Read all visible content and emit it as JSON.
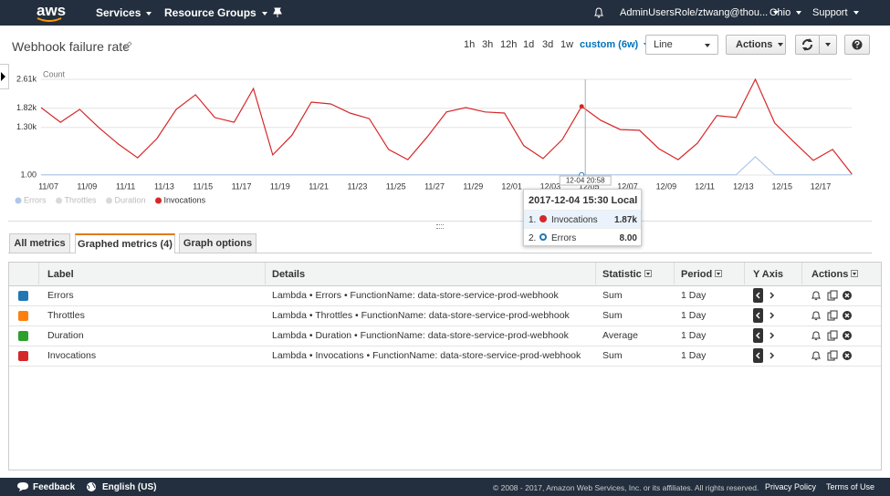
{
  "nav": {
    "logo": "aws",
    "services": "Services",
    "resource_groups": "Resource Groups",
    "account": "AdminUsersRole/ztwang@thou...",
    "region": "Ohio",
    "support": "Support"
  },
  "header": {
    "title": "Webhook failure rate",
    "ranges": [
      "1h",
      "3h",
      "12h",
      "1d",
      "3d",
      "1w"
    ],
    "custom": "custom (6w)",
    "view": "Line",
    "actions": "Actions"
  },
  "chart_data": {
    "type": "line",
    "y_label": "Count",
    "categories": [
      null,
      "11/07",
      null,
      "11/09",
      null,
      "11/11",
      null,
      "11/13",
      null,
      "11/15",
      null,
      "11/17",
      null,
      "11/19",
      null,
      "11/21",
      null,
      "11/23",
      null,
      "11/25",
      null,
      "11/27",
      null,
      "11/29",
      null,
      "12/01",
      null,
      "12/03",
      null,
      "12/05",
      null,
      "12/07",
      null,
      "12/09",
      null,
      "12/11",
      null,
      "12/13",
      null,
      "12/15",
      null,
      "12/17",
      null
    ],
    "series": [
      {
        "name": "Errors",
        "color": "#aec7e8",
        "values": [
          8,
          8,
          8,
          8,
          8,
          8,
          8,
          8,
          8,
          8,
          8,
          8,
          8,
          8,
          8,
          8,
          8,
          8,
          8,
          8,
          8,
          8,
          8,
          8,
          8,
          8,
          8,
          8,
          8,
          8,
          8,
          8,
          8,
          8,
          8,
          8,
          8,
          500,
          8,
          8,
          8,
          8,
          8
        ]
      },
      {
        "name": "Throttles",
        "color": "#d9d9d9",
        "values": [
          null,
          null,
          null,
          null,
          null,
          null,
          null,
          null,
          null,
          null,
          null,
          null,
          null,
          null,
          null,
          null,
          null,
          null,
          null,
          null,
          null,
          null,
          null,
          null,
          null,
          null,
          null,
          null,
          null,
          null,
          null,
          null,
          null,
          null,
          null,
          null,
          null,
          null,
          null,
          null,
          null,
          null,
          null
        ]
      },
      {
        "name": "Duration",
        "color": "#d9d9d9",
        "values": [
          null,
          null,
          null,
          null,
          null,
          null,
          null,
          null,
          null,
          null,
          null,
          null,
          null,
          null,
          null,
          null,
          null,
          null,
          null,
          null,
          null,
          null,
          null,
          null,
          null,
          null,
          null,
          null,
          null,
          null,
          null,
          null,
          null,
          null,
          null,
          null,
          null,
          null,
          null,
          null,
          null,
          null,
          null
        ]
      },
      {
        "name": "Invocations",
        "color": "#d62728",
        "values": [
          1840,
          1440,
          1790,
          1290,
          845,
          470,
          995,
          1790,
          2190,
          1570,
          1440,
          2360,
          550,
          1090,
          1990,
          1940,
          1690,
          1540,
          700,
          420,
          1040,
          1720,
          1840,
          1720,
          1690,
          800,
          450,
          970,
          1870,
          1490,
          1240,
          1220,
          720,
          420,
          870,
          1620,
          1570,
          2610,
          1420,
          900,
          400,
          700,
          25
        ]
      }
    ],
    "ylim": [
      1,
      2610
    ],
    "yticks": [
      {
        "value": 1,
        "label": "1.00"
      },
      {
        "value": 1300,
        "label": "1.30k"
      },
      {
        "value": 1820,
        "label": "1.82k"
      },
      {
        "value": 2610,
        "label": "2.61k"
      }
    ],
    "grid": true,
    "legend": "bottom-left",
    "crosshair": "12-04 20:58",
    "tooltip": {
      "title": "2017-12-04 15:30 Local",
      "rows": [
        {
          "index": "1.",
          "name": "Invocations",
          "value": "1.87k"
        },
        {
          "index": "2.",
          "name": "Errors",
          "value": "8.00"
        }
      ]
    }
  },
  "tabs": [
    "All metrics",
    "Graphed metrics (4)",
    "Graph options"
  ],
  "table": {
    "columns": [
      "Label",
      "Details",
      "Statistic",
      "Period",
      "Y Axis",
      "Actions"
    ],
    "rows": [
      {
        "color": "#1f77b4",
        "label": "Errors",
        "details": "Lambda • Errors • FunctionName: data-store-service-prod-webhook",
        "statistic": "Sum",
        "period": "1 Day"
      },
      {
        "color": "#ff7f0e",
        "label": "Throttles",
        "details": "Lambda • Throttles • FunctionName: data-store-service-prod-webhook",
        "statistic": "Sum",
        "period": "1 Day"
      },
      {
        "color": "#2ca02c",
        "label": "Duration",
        "details": "Lambda • Duration • FunctionName: data-store-service-prod-webhook",
        "statistic": "Average",
        "period": "1 Day"
      },
      {
        "color": "#d62728",
        "label": "Invocations",
        "details": "Lambda • Invocations • FunctionName: data-store-service-prod-webhook",
        "statistic": "Sum",
        "period": "1 Day"
      }
    ]
  },
  "footer": {
    "feedback": "Feedback",
    "language": "English (US)",
    "copyright": "© 2008 - 2017, Amazon Web Services, Inc. or its affiliates. All rights reserved.",
    "privacy": "Privacy Policy",
    "terms": "Terms of Use"
  }
}
